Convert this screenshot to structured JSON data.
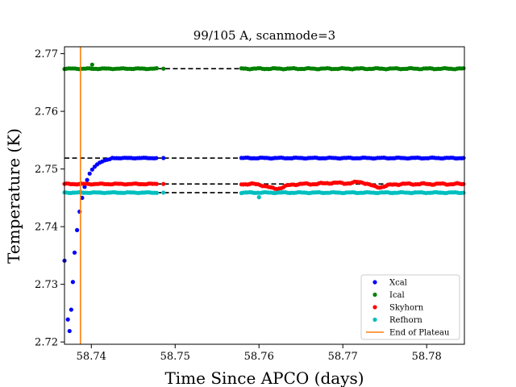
{
  "chart_data": {
    "type": "scatter",
    "title": "99/105 A, scanmode=3",
    "xlabel": "Time Since APCO (days)",
    "ylabel": "Temperature (K)",
    "xlim": [
      58.7368,
      58.7845
    ],
    "ylim": [
      2.7196,
      2.7712
    ],
    "xticks": [
      58.74,
      58.75,
      58.76,
      58.77,
      58.78
    ],
    "xtick_labels": [
      "58.74",
      "58.75",
      "58.76",
      "58.77",
      "58.78"
    ],
    "yticks": [
      2.72,
      2.73,
      2.74,
      2.75,
      2.76,
      2.77
    ],
    "ytick_labels": [
      "2.72",
      "2.73",
      "2.74",
      "2.75",
      "2.76",
      "2.77"
    ],
    "gap": [
      58.7486,
      58.7579
    ],
    "legend_position": "lower-right",
    "series": [
      {
        "name": "Xcal",
        "color": "#0000ff",
        "plateau": 2.7519,
        "transient": [
          [
            58.7368,
            2.7341
          ],
          [
            58.7372,
            2.7239
          ],
          [
            58.7374,
            2.7219
          ],
          [
            58.7376,
            2.7256
          ],
          [
            58.7378,
            2.7304
          ],
          [
            58.738,
            2.7355
          ],
          [
            58.7383,
            2.7394
          ],
          [
            58.7386,
            2.7426
          ],
          [
            58.7389,
            2.745
          ],
          [
            58.7392,
            2.7469
          ],
          [
            58.7395,
            2.7481
          ],
          [
            58.7398,
            2.7492
          ],
          [
            58.7401,
            2.7499
          ],
          [
            58.7404,
            2.7504
          ],
          [
            58.7407,
            2.7508
          ],
          [
            58.741,
            2.7511
          ],
          [
            58.7413,
            2.7513
          ],
          [
            58.7416,
            2.7515
          ],
          [
            58.7419,
            2.7516
          ],
          [
            58.7422,
            2.7517
          ]
        ],
        "segments": [
          [
            58.7425,
            58.7479,
            4e-05
          ],
          [
            58.7579,
            58.7845,
            6e-05
          ]
        ],
        "isolated": [
          [
            58.7486,
            2.7519
          ]
        ]
      },
      {
        "name": "Ical",
        "color": "#008000",
        "plateau": 2.7674,
        "transient": [
          [
            58.7401,
            2.7681
          ]
        ],
        "segments": [
          [
            58.7368,
            58.7479,
            5e-05
          ],
          [
            58.7579,
            58.7845,
            7e-05
          ]
        ],
        "isolated": [
          [
            58.7486,
            2.7674
          ]
        ]
      },
      {
        "name": "Skyhorn",
        "color": "#ff0000",
        "plateau": 2.7474,
        "transient": [],
        "segments": [
          [
            58.7368,
            58.7479,
            6e-05
          ],
          [
            58.7579,
            58.7845,
            0.0001
          ]
        ],
        "isolated": [
          [
            58.7486,
            2.7474
          ]
        ],
        "dips": [
          [
            58.762,
            2.7466
          ],
          [
            58.7689,
            2.7476
          ],
          [
            58.7723,
            2.7478
          ],
          [
            58.7741,
            2.7468
          ]
        ]
      },
      {
        "name": "Refhorn",
        "color": "#00bfbf",
        "plateau": 2.7459,
        "transient": [],
        "segments": [
          [
            58.7368,
            58.7479,
            5e-05
          ],
          [
            58.7579,
            58.7845,
            6e-05
          ]
        ],
        "isolated": [
          [
            58.7486,
            2.7459
          ],
          [
            58.76,
            2.7451
          ]
        ]
      }
    ],
    "reference_lines": [
      {
        "y": 2.7674,
        "x_ranges": [
          [
            58.7479,
            58.7845
          ]
        ],
        "style": "dashed",
        "color": "#000000"
      },
      {
        "y": 2.7519,
        "x_ranges": [
          [
            58.7368,
            58.7845
          ]
        ],
        "style": "dashed",
        "color": "#000000"
      },
      {
        "y": 2.7474,
        "x_ranges": [
          [
            58.7368,
            58.7845
          ]
        ],
        "style": "dashed",
        "color": "#000000"
      },
      {
        "y": 2.7459,
        "x_ranges": [
          [
            58.7368,
            58.7845
          ]
        ],
        "style": "dashed",
        "color": "#000000"
      }
    ],
    "vertical_line": {
      "name": "End of Plateau",
      "x": 58.7387,
      "color": "#ff7f0e"
    },
    "legend": [
      "Xcal",
      "Ical",
      "Skyhorn",
      "Refhorn",
      "End of Plateau"
    ]
  }
}
